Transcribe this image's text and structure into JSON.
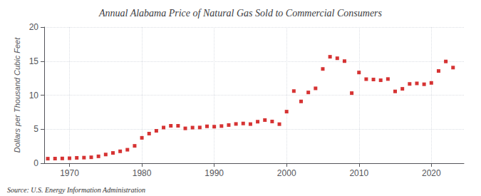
{
  "chart_data": {
    "type": "scatter",
    "title": "Annual Alabama Price of Natural Gas Sold to Commercial Consumers",
    "ylabel": "Dollars per Thousand Cubic Feet",
    "annotations": [
      "Source: U.S. Energy Information Administration"
    ],
    "color": "#cc0000",
    "marker": "square",
    "grid": true,
    "xlim": [
      1966.5,
      2024.5
    ],
    "xticks": [
      1970,
      1980,
      1990,
      2000,
      2010,
      2020
    ],
    "ylim": [
      0,
      20
    ],
    "yticks": [
      0,
      5,
      10,
      15,
      20
    ],
    "x": [
      1967,
      1968,
      1969,
      1970,
      1971,
      1972,
      1973,
      1974,
      1975,
      1976,
      1977,
      1978,
      1979,
      1980,
      1981,
      1982,
      1983,
      1984,
      1985,
      1986,
      1987,
      1988,
      1989,
      1990,
      1991,
      1992,
      1993,
      1994,
      1995,
      1996,
      1997,
      1998,
      1999,
      2000,
      2001,
      2002,
      2003,
      2004,
      2005,
      2006,
      2007,
      2008,
      2009,
      2010,
      2011,
      2012,
      2013,
      2014,
      2015,
      2016,
      2017,
      2018,
      2019,
      2020,
      2021,
      2022,
      2023
    ],
    "values": [
      0.67,
      0.68,
      0.7,
      0.73,
      0.79,
      0.82,
      0.87,
      1.01,
      1.28,
      1.51,
      1.75,
      1.98,
      2.55,
      3.73,
      4.35,
      4.76,
      5.24,
      5.5,
      5.5,
      5.12,
      5.23,
      5.25,
      5.42,
      5.37,
      5.46,
      5.61,
      5.77,
      5.84,
      5.75,
      6.1,
      6.34,
      6.13,
      5.74,
      7.58,
      10.6,
      9.08,
      10.4,
      11.0,
      13.85,
      15.64,
      15.42,
      15.0,
      10.3,
      13.33,
      12.35,
      12.3,
      12.19,
      12.37,
      10.55,
      10.93,
      11.65,
      11.73,
      11.6,
      11.8,
      13.55,
      14.95,
      14.05
    ]
  }
}
